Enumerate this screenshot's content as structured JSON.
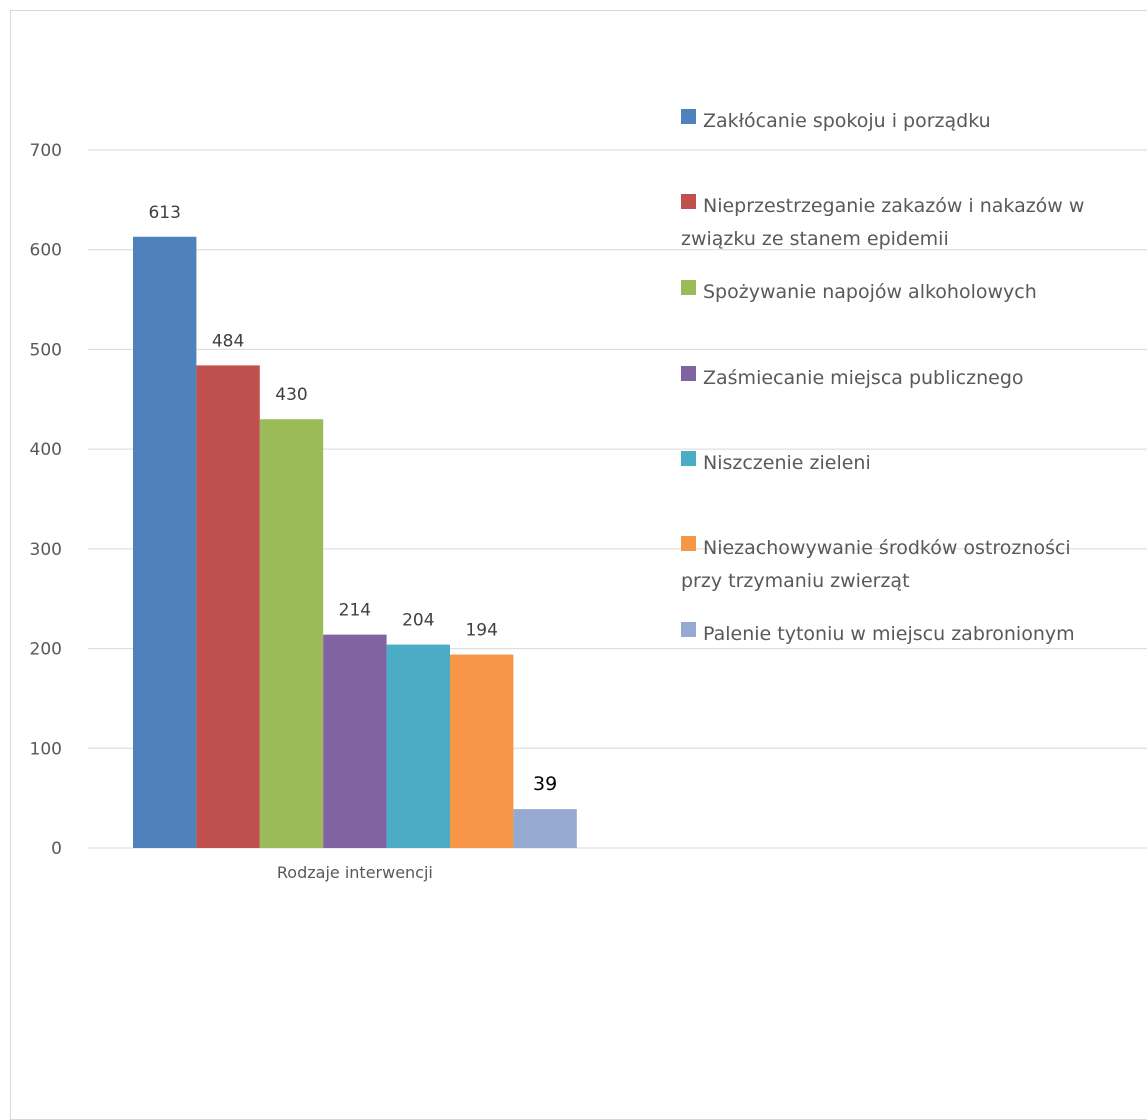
{
  "chart_data": {
    "type": "bar",
    "title": "",
    "xlabel": "",
    "ylabel": "",
    "categories": [
      "Rodzaje interwencji"
    ],
    "ylim": [
      0,
      700
    ],
    "yticks": [
      0,
      100,
      200,
      300,
      400,
      500,
      600,
      700
    ],
    "grid": true,
    "legend_position": "right",
    "series": [
      {
        "name": "Zakłócanie spokoju i porządku",
        "values": [
          613
        ],
        "color": "#4f81bd",
        "legend_lines": [
          "Zakłócanie spokoju i porządku"
        ]
      },
      {
        "name": "Nieprzestrzeganie zakazów i nakazów w związku ze stanem epidemii",
        "values": [
          484
        ],
        "color": "#c0504d",
        "legend_lines": [
          "Nieprzestrzeganie zakazów i nakazów w",
          "związku ze stanem epidemii"
        ]
      },
      {
        "name": "Spożywanie napojów alkoholowych",
        "values": [
          430
        ],
        "color": "#9bbb59",
        "legend_lines": [
          "Spożywanie napojów alkoholowych"
        ]
      },
      {
        "name": "Zaśmiecanie miejsca publicznego",
        "values": [
          214
        ],
        "color": "#8064a2",
        "legend_lines": [
          "Zaśmiecanie miejsca publicznego"
        ]
      },
      {
        "name": "Niszczenie zieleni",
        "values": [
          204
        ],
        "color": "#4bacc6",
        "legend_lines": [
          "Niszczenie zieleni"
        ]
      },
      {
        "name": "Niezachowywanie środków ostrozności przy trzymaniu zwierząt",
        "values": [
          194
        ],
        "color": "#f79646",
        "legend_lines": [
          "Niezachowywanie środków ostrozności",
          "przy trzymaniu zwierząt"
        ]
      },
      {
        "name": "Palenie tytoniu w miejscu zabronionym",
        "values": [
          39
        ],
        "color": "#95a9d1",
        "legend_lines": [
          "Palenie tytoniu w miejscu zabronionym"
        ]
      }
    ]
  }
}
